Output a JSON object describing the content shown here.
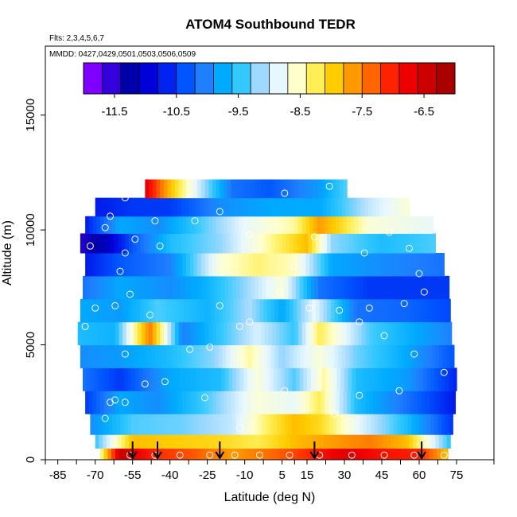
{
  "chart_data": {
    "type": "heatmap",
    "title": "ATOM4 Southbound TEDR",
    "subtitle_flights": "Flts: 2,3,4,5,6,7",
    "subtitle_dates": "MMDD: 0427,0429,0501,0503,0506,0509",
    "xlabel": "Latitude (deg N)",
    "ylabel": "Altitude (m)",
    "xlim": [
      -90,
      90
    ],
    "ylim": [
      0,
      18000
    ],
    "x_ticks": [
      -85,
      -70,
      -55,
      -40,
      -25,
      -10,
      5,
      15,
      30,
      45,
      60,
      75
    ],
    "y_ticks": [
      0,
      5000,
      10000,
      15000
    ],
    "colorbar": {
      "ticks": [
        -11.5,
        -10.5,
        -9.5,
        -8.5,
        -7.5,
        -6.5
      ],
      "range": [
        -12,
        -6
      ],
      "colors": [
        "#7f00ff",
        "#3300dd",
        "#0000aa",
        "#0000d8",
        "#0022ee",
        "#0055ff",
        "#1f7fff",
        "#00aaff",
        "#33c8ff",
        "#9fd9ff",
        "#e6f7ff",
        "#ffffcc",
        "#ffee55",
        "#ffcc00",
        "#ff9900",
        "#ff6600",
        "#ff2200",
        "#ee0000",
        "#cc0000",
        "#aa0000"
      ]
    },
    "heatmap_bands": [
      {
        "alt": 300,
        "lat_min": -68,
        "lat_max": 71,
        "values": [
          [
            -68,
            -8.5
          ],
          [
            -60,
            -6.3
          ],
          [
            -45,
            -7.0
          ],
          [
            -30,
            -7.2
          ],
          [
            -15,
            -7.6
          ],
          [
            0,
            -7.3
          ],
          [
            15,
            -7.0
          ],
          [
            30,
            -6.5
          ],
          [
            45,
            -6.8
          ],
          [
            60,
            -6.9
          ],
          [
            71,
            -7.8
          ]
        ]
      },
      {
        "alt": 700,
        "lat_min": -70,
        "lat_max": 72,
        "values": [
          [
            -70,
            -9.5
          ],
          [
            -55,
            -7.8
          ],
          [
            -40,
            -7.9
          ],
          [
            -20,
            -8.0
          ],
          [
            -5,
            -8.2
          ],
          [
            10,
            -7.8
          ],
          [
            25,
            -7.6
          ],
          [
            40,
            -7.4
          ],
          [
            55,
            -7.8
          ],
          [
            72,
            -9.5
          ]
        ]
      },
      {
        "alt": 1500,
        "lat_min": -72,
        "lat_max": 73,
        "values": [
          [
            -72,
            -10.0
          ],
          [
            -55,
            -9.4
          ],
          [
            -35,
            -9.3
          ],
          [
            -15,
            -9.0
          ],
          [
            0,
            -8.2
          ],
          [
            10,
            -7.8
          ],
          [
            20,
            -8.0
          ],
          [
            35,
            -8.8
          ],
          [
            55,
            -9.6
          ],
          [
            73,
            -10.6
          ]
        ]
      },
      {
        "alt": 2500,
        "lat_min": -74,
        "lat_max": 74,
        "values": [
          [
            -74,
            -10.6
          ],
          [
            -60,
            -9.8
          ],
          [
            -45,
            -10.0
          ],
          [
            -25,
            -9.4
          ],
          [
            -5,
            -8.6
          ],
          [
            10,
            -8.8
          ],
          [
            20,
            -8.2
          ],
          [
            35,
            -9.6
          ],
          [
            55,
            -10.2
          ],
          [
            74,
            -10.8
          ]
        ]
      },
      {
        "alt": 3500,
        "lat_min": -75,
        "lat_max": 74,
        "values": [
          [
            -75,
            -10.2
          ],
          [
            -60,
            -10.6
          ],
          [
            -40,
            -9.8
          ],
          [
            -20,
            -9.6
          ],
          [
            -5,
            -8.6
          ],
          [
            10,
            -9.4
          ],
          [
            22,
            -8.4
          ],
          [
            35,
            -9.6
          ],
          [
            55,
            -9.9
          ],
          [
            74,
            -10.7
          ]
        ]
      },
      {
        "alt": 4500,
        "lat_min": -76,
        "lat_max": 73,
        "values": [
          [
            -76,
            -10.0
          ],
          [
            -60,
            -9.9
          ],
          [
            -40,
            -9.6
          ],
          [
            -22,
            -9.2
          ],
          [
            -8,
            -8.4
          ],
          [
            5,
            -9.2
          ],
          [
            20,
            -8.6
          ],
          [
            35,
            -9.3
          ],
          [
            55,
            -9.8
          ],
          [
            73,
            -10.4
          ]
        ]
      },
      {
        "alt": 5500,
        "lat_min": -77,
        "lat_max": 73,
        "values": [
          [
            -77,
            -9.6
          ],
          [
            -62,
            -9.7
          ],
          [
            -48,
            -7.4
          ],
          [
            -35,
            -10.1
          ],
          [
            -20,
            -9.5
          ],
          [
            -5,
            -8.9
          ],
          [
            10,
            -9.5
          ],
          [
            20,
            -8.2
          ],
          [
            40,
            -9.4
          ],
          [
            73,
            -10.1
          ]
        ]
      },
      {
        "alt": 6500,
        "lat_min": -76,
        "lat_max": 72,
        "values": [
          [
            -76,
            -9.8
          ],
          [
            -60,
            -9.9
          ],
          [
            -45,
            -9.4
          ],
          [
            -25,
            -9.7
          ],
          [
            -8,
            -9.1
          ],
          [
            5,
            -9.8
          ],
          [
            18,
            -8.8
          ],
          [
            35,
            -10.2
          ],
          [
            55,
            -10.3
          ],
          [
            72,
            -10.5
          ]
        ]
      },
      {
        "alt": 7500,
        "lat_min": -75,
        "lat_max": 72,
        "values": [
          [
            -75,
            -10.2
          ],
          [
            -60,
            -9.8
          ],
          [
            -40,
            -10.0
          ],
          [
            -25,
            -9.7
          ],
          [
            -10,
            -9.2
          ],
          [
            5,
            -8.6
          ],
          [
            20,
            -10.2
          ],
          [
            40,
            -10.6
          ],
          [
            72,
            -10.6
          ]
        ]
      },
      {
        "alt": 8500,
        "lat_min": -74,
        "lat_max": 70,
        "values": [
          [
            -74,
            -10.8
          ],
          [
            -60,
            -10.4
          ],
          [
            -40,
            -10.1
          ],
          [
            -20,
            -8.6
          ],
          [
            -5,
            -8.3
          ],
          [
            10,
            -8.5
          ],
          [
            25,
            -9.8
          ],
          [
            45,
            -10.0
          ],
          [
            70,
            -10.2
          ]
        ]
      },
      {
        "alt": 9500,
        "lat_min": -76,
        "lat_max": 66,
        "values": [
          [
            -76,
            -11.6
          ],
          [
            -65,
            -11.2
          ],
          [
            -55,
            -10.4
          ],
          [
            -40,
            -9.6
          ],
          [
            -20,
            -9.2
          ],
          [
            -5,
            -8.6
          ],
          [
            15,
            -7.8
          ],
          [
            25,
            -9.2
          ],
          [
            45,
            -9.6
          ],
          [
            66,
            -9.4
          ]
        ]
      },
      {
        "alt": 10200,
        "lat_min": -74,
        "lat_max": 65,
        "values": [
          [
            -74,
            -10.8
          ],
          [
            -60,
            -9.8
          ],
          [
            -45,
            -10.0
          ],
          [
            -30,
            -9.5
          ],
          [
            -10,
            -8.8
          ],
          [
            10,
            -8.4
          ],
          [
            20,
            -7.6
          ],
          [
            40,
            -8.6
          ],
          [
            65,
            -8.8
          ]
        ]
      },
      {
        "alt": 11000,
        "lat_min": -70,
        "lat_max": 55,
        "values": [
          [
            -70,
            -10.8
          ],
          [
            -55,
            -10.6
          ],
          [
            -40,
            -10.6
          ],
          [
            -20,
            -10.0
          ],
          [
            0,
            -9.8
          ],
          [
            20,
            -9.8
          ],
          [
            40,
            -9.0
          ],
          [
            55,
            -8.6
          ]
        ]
      },
      {
        "alt": 11800,
        "lat_min": -50,
        "lat_max": 30,
        "values": [
          [
            -50,
            -6.5
          ],
          [
            -40,
            -7.8
          ],
          [
            -30,
            -8.8
          ],
          [
            -15,
            -10.2
          ],
          [
            0,
            -10.4
          ],
          [
            20,
            -9.9
          ],
          [
            30,
            -9.4
          ]
        ]
      }
    ],
    "sample_markers": [
      [
        -56,
        200
      ],
      [
        -46,
        200
      ],
      [
        -36,
        200
      ],
      [
        -24,
        200
      ],
      [
        -14,
        200
      ],
      [
        -4,
        200
      ],
      [
        8,
        200
      ],
      [
        20,
        200
      ],
      [
        33,
        200
      ],
      [
        46,
        200
      ],
      [
        58,
        200
      ],
      [
        70,
        200
      ],
      [
        -66,
        1800
      ],
      [
        -62,
        2600
      ],
      [
        -58,
        4600
      ],
      [
        -50,
        3300
      ],
      [
        -42,
        3400
      ],
      [
        -32,
        4800
      ],
      [
        -24,
        4900
      ],
      [
        -12,
        5800
      ],
      [
        -8,
        6000
      ],
      [
        -20,
        6700
      ],
      [
        -48,
        6300
      ],
      [
        -62,
        6700
      ],
      [
        -70,
        6600
      ],
      [
        -78,
        4300
      ],
      [
        -74,
        5800
      ],
      [
        -56,
        7200
      ],
      [
        -60,
        8200
      ],
      [
        -54,
        9600
      ],
      [
        -64,
        10600
      ],
      [
        -58,
        11400
      ],
      [
        -46,
        10400
      ],
      [
        -30,
        10400
      ],
      [
        -20,
        10800
      ],
      [
        -8,
        9800
      ],
      [
        6,
        11600
      ],
      [
        24,
        11900
      ],
      [
        18,
        9700
      ],
      [
        10,
        8400
      ],
      [
        -44,
        9300
      ],
      [
        -58,
        9000
      ],
      [
        -72,
        9300
      ],
      [
        -66,
        10100
      ],
      [
        4,
        7300
      ],
      [
        16,
        6600
      ],
      [
        28,
        6500
      ],
      [
        40,
        6600
      ],
      [
        54,
        6800
      ],
      [
        62,
        7300
      ],
      [
        38,
        9000
      ],
      [
        48,
        9900
      ],
      [
        56,
        9200
      ],
      [
        60,
        8100
      ],
      [
        36,
        6000
      ],
      [
        46,
        5400
      ],
      [
        58,
        4600
      ],
      [
        70,
        3800
      ],
      [
        52,
        3000
      ],
      [
        36,
        2800
      ],
      [
        26,
        2000
      ],
      [
        6,
        3000
      ],
      [
        -12,
        1400
      ],
      [
        -26,
        2700
      ],
      [
        -58,
        2500
      ],
      [
        -64,
        2500
      ]
    ],
    "arrows_lat": [
      -55,
      -45,
      -20,
      18,
      61
    ]
  }
}
